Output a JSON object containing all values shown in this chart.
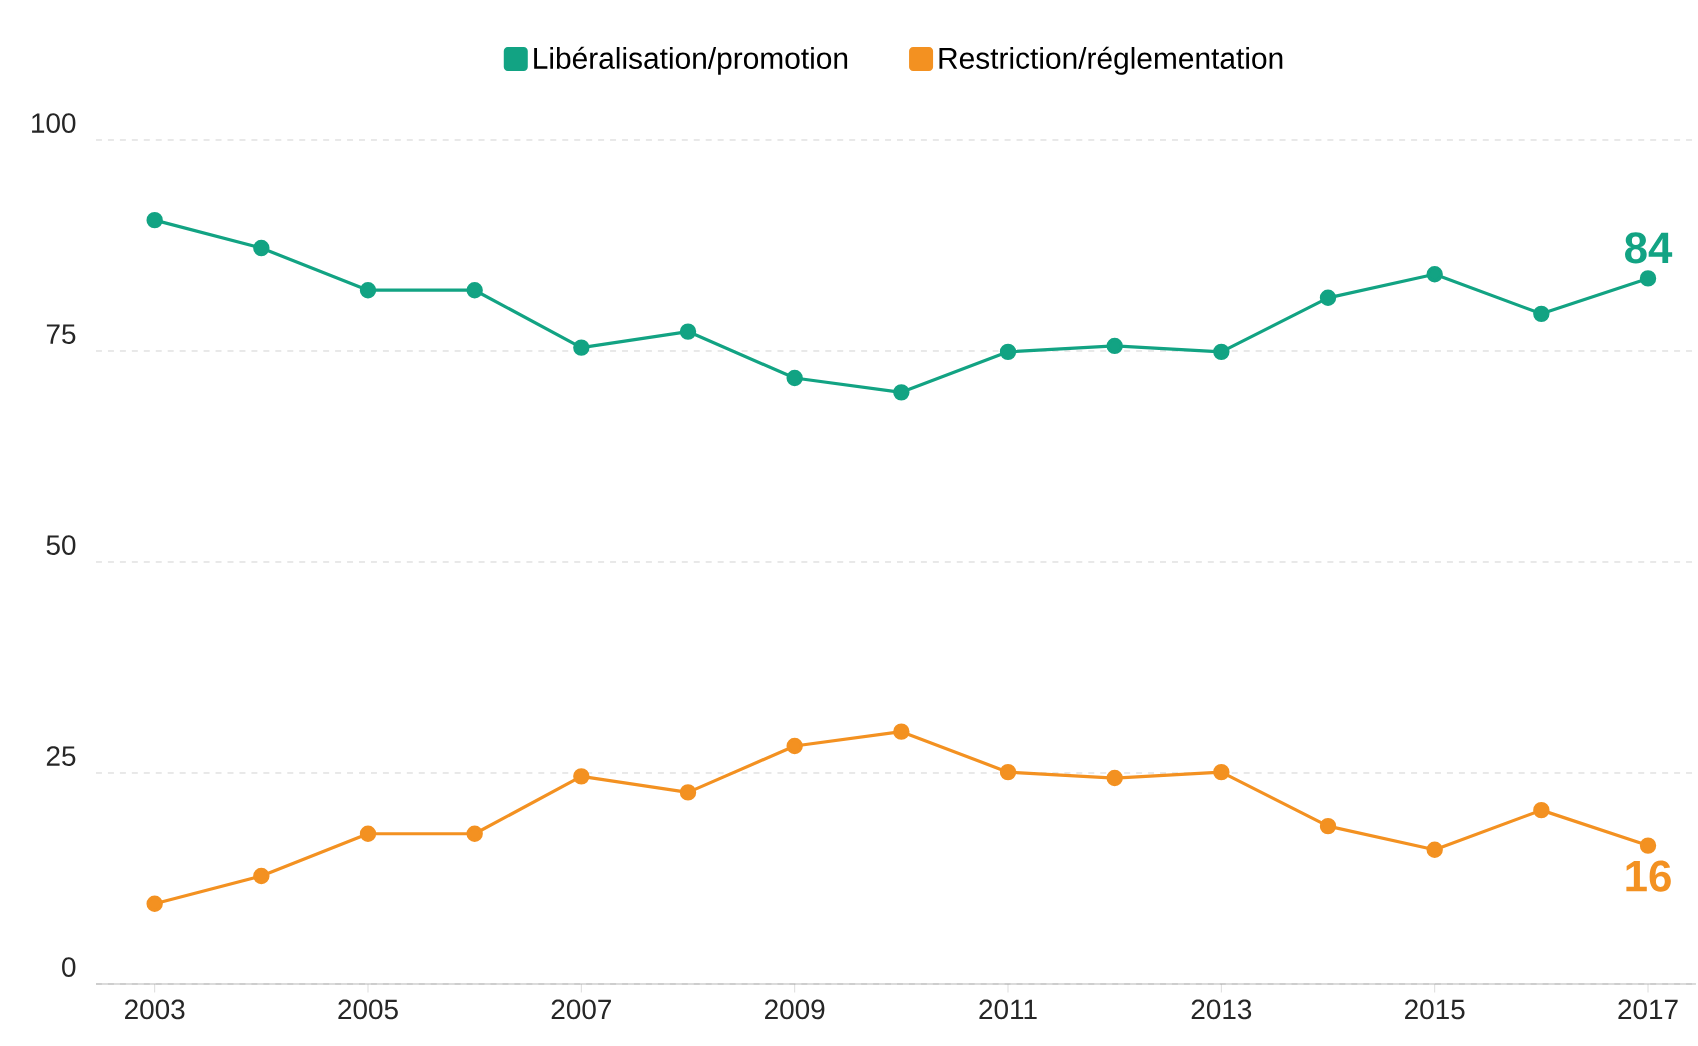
{
  "chart_data": {
    "type": "line",
    "x": [
      2003,
      2004,
      2005,
      2006,
      2007,
      2008,
      2009,
      2010,
      2011,
      2012,
      2013,
      2014,
      2015,
      2016,
      2017
    ],
    "series": [
      {
        "name": "Libéralisation/promotion",
        "color": "#12a383",
        "values": [
          90.5,
          87.2,
          82.2,
          82.2,
          75.4,
          77.3,
          71.8,
          70.1,
          74.9,
          75.6,
          74.9,
          81.3,
          84.1,
          79.4,
          83.6
        ]
      },
      {
        "name": "Restriction/réglementation",
        "color": "#f39121",
        "values": [
          9.5,
          12.8,
          17.8,
          17.8,
          24.6,
          22.7,
          28.2,
          29.9,
          25.1,
          24.4,
          25.1,
          18.7,
          15.9,
          20.6,
          16.4
        ]
      }
    ],
    "xlim": [
      2002.45,
      2017.45
    ],
    "xticks": [
      2003,
      2005,
      2007,
      2009,
      2011,
      2013,
      2015,
      2017
    ],
    "ylim": [
      0,
      100
    ],
    "yticks": [
      0,
      25,
      50,
      75,
      100
    ],
    "grid": "y",
    "legend": "top",
    "marker": "circle",
    "line_style": "solid",
    "annotations": [
      {
        "text": "84",
        "x": 2017,
        "y": 83.6
      },
      {
        "text": "16",
        "x": 2017,
        "y": 16.4
      }
    ]
  }
}
